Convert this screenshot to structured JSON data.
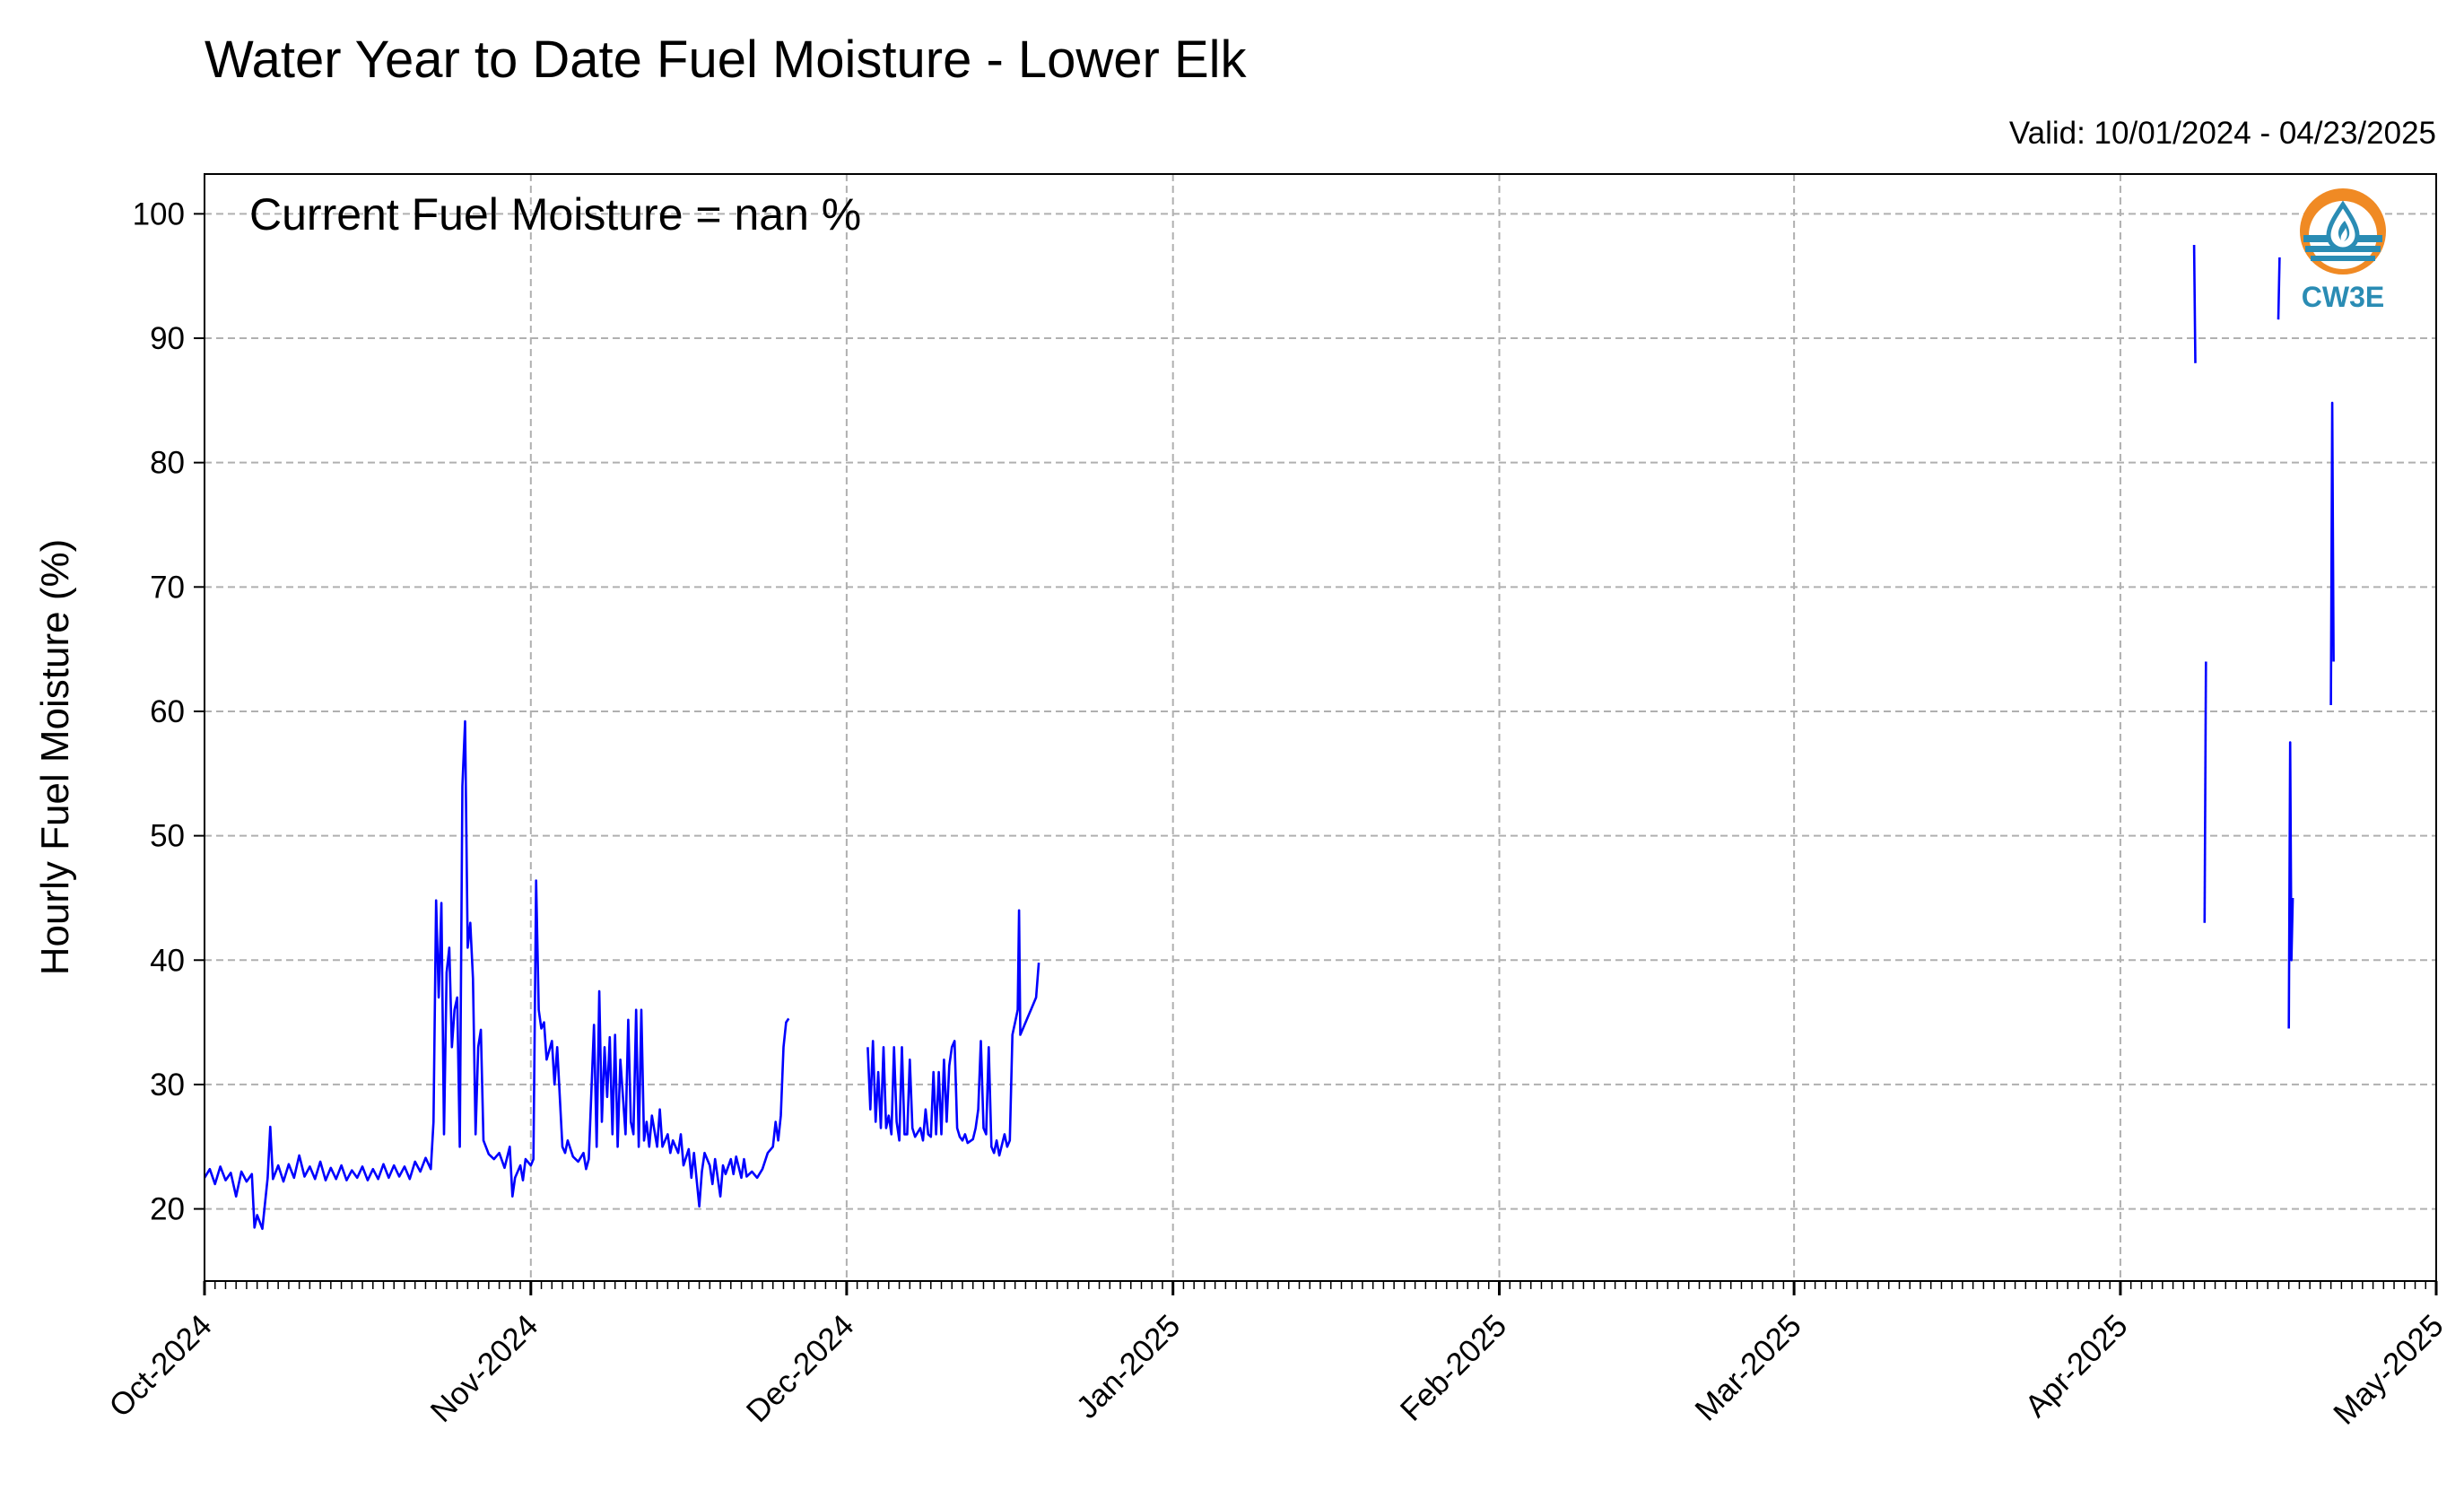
{
  "chart_data": {
    "type": "line",
    "title": "Water Year to Date Fuel Moisture - Lower Elk",
    "valid": "Valid: 10/01/2024 - 04/23/2025",
    "current": "Current Fuel Moisture = nan %",
    "xlabel": "",
    "ylabel": "Hourly Fuel Moisture (%)",
    "xlim": [
      "2024-10-01",
      "2025-05-01"
    ],
    "ylim": [
      14.2,
      103.2
    ],
    "yticks": [
      20,
      30,
      40,
      50,
      60,
      70,
      80,
      90,
      100
    ],
    "xticks": [
      {
        "date": "2024-10-01",
        "label": "Oct-2024"
      },
      {
        "date": "2024-11-01",
        "label": "Nov-2024"
      },
      {
        "date": "2024-12-01",
        "label": "Dec-2024"
      },
      {
        "date": "2025-01-01",
        "label": "Jan-2025"
      },
      {
        "date": "2025-02-01",
        "label": "Feb-2025"
      },
      {
        "date": "2025-03-01",
        "label": "Mar-2025"
      },
      {
        "date": "2025-04-01",
        "label": "Apr-2025"
      },
      {
        "date": "2025-05-01",
        "label": "May-2025"
      }
    ],
    "grid": true,
    "series": [
      {
        "color": "#0000ff",
        "segments": [
          [
            [
              "2024-10-01",
              22.5
            ],
            [
              "2024-10-01T12",
              23.2
            ],
            [
              "2024-10-02",
              22.0
            ],
            [
              "2024-10-02T12",
              23.4
            ],
            [
              "2024-10-03",
              22.3
            ],
            [
              "2024-10-03T12",
              22.9
            ],
            [
              "2024-10-04",
              21.0
            ],
            [
              "2024-10-04T12",
              23.0
            ],
            [
              "2024-10-05",
              22.2
            ],
            [
              "2024-10-05T12",
              22.8
            ],
            [
              "2024-10-05T18",
              18.5
            ],
            [
              "2024-10-06",
              19.5
            ],
            [
              "2024-10-06T12",
              18.4
            ],
            [
              "2024-10-07",
              22.5
            ],
            [
              "2024-10-07T06",
              26.6
            ],
            [
              "2024-10-07T12",
              22.4
            ],
            [
              "2024-10-08",
              23.5
            ],
            [
              "2024-10-08T12",
              22.2
            ],
            [
              "2024-10-09",
              23.6
            ],
            [
              "2024-10-09T12",
              22.5
            ],
            [
              "2024-10-10",
              24.3
            ],
            [
              "2024-10-10T12",
              22.6
            ],
            [
              "2024-10-11",
              23.4
            ],
            [
              "2024-10-11T12",
              22.4
            ],
            [
              "2024-10-12",
              23.8
            ],
            [
              "2024-10-12T12",
              22.3
            ],
            [
              "2024-10-13",
              23.3
            ],
            [
              "2024-10-13T12",
              22.4
            ],
            [
              "2024-10-14",
              23.5
            ],
            [
              "2024-10-14T12",
              22.3
            ],
            [
              "2024-10-15",
              23.1
            ],
            [
              "2024-10-15T12",
              22.5
            ],
            [
              "2024-10-16",
              23.4
            ],
            [
              "2024-10-16T12",
              22.3
            ],
            [
              "2024-10-17",
              23.2
            ],
            [
              "2024-10-17T12",
              22.4
            ],
            [
              "2024-10-18",
              23.6
            ],
            [
              "2024-10-18T12",
              22.5
            ],
            [
              "2024-10-19",
              23.5
            ],
            [
              "2024-10-19T12",
              22.6
            ],
            [
              "2024-10-20",
              23.4
            ],
            [
              "2024-10-20T12",
              22.4
            ],
            [
              "2024-10-21",
              23.8
            ],
            [
              "2024-10-21T12",
              23.0
            ],
            [
              "2024-10-22",
              24.1
            ],
            [
              "2024-10-22T12",
              23.2
            ],
            [
              "2024-10-22T18",
              27.0
            ],
            [
              "2024-10-23",
              44.8
            ],
            [
              "2024-10-23T06",
              37.0
            ],
            [
              "2024-10-23T12",
              44.6
            ],
            [
              "2024-10-23T18",
              26.0
            ],
            [
              "2024-10-24",
              39.0
            ],
            [
              "2024-10-24T06",
              41.0
            ],
            [
              "2024-10-24T12",
              33.0
            ],
            [
              "2024-10-24T18",
              36.0
            ],
            [
              "2024-10-25",
              37.0
            ],
            [
              "2024-10-25T06",
              25.0
            ],
            [
              "2024-10-25T12",
              54.0
            ],
            [
              "2024-10-25T18",
              59.2
            ],
            [
              "2024-10-26",
              41.0
            ],
            [
              "2024-10-26T06",
              43.0
            ],
            [
              "2024-10-26T12",
              38.5
            ],
            [
              "2024-10-26T18",
              26.0
            ],
            [
              "2024-10-27",
              33.0
            ],
            [
              "2024-10-27T06",
              34.4
            ],
            [
              "2024-10-27T12",
              25.5
            ],
            [
              "2024-10-28",
              24.4
            ],
            [
              "2024-10-28T12",
              24.0
            ],
            [
              "2024-10-29",
              24.5
            ],
            [
              "2024-10-29T12",
              23.3
            ],
            [
              "2024-10-30",
              25.0
            ],
            [
              "2024-10-30T06",
              21.0
            ],
            [
              "2024-10-30T12",
              22.5
            ],
            [
              "2024-10-31",
              23.5
            ],
            [
              "2024-10-31T06",
              22.3
            ],
            [
              "2024-10-31T12",
              24.0
            ],
            [
              "2024-11-01",
              23.5
            ],
            [
              "2024-11-01T06",
              24.0
            ],
            [
              "2024-11-01T12",
              46.4
            ],
            [
              "2024-11-01T18",
              36.0
            ],
            [
              "2024-11-02",
              34.5
            ],
            [
              "2024-11-02T06",
              35.0
            ],
            [
              "2024-11-02T12",
              32.0
            ],
            [
              "2024-11-03",
              33.5
            ],
            [
              "2024-11-03T06",
              30.0
            ],
            [
              "2024-11-03T12",
              33.0
            ],
            [
              "2024-11-04",
              25.0
            ],
            [
              "2024-11-04T06",
              24.5
            ],
            [
              "2024-11-04T12",
              25.5
            ],
            [
              "2024-11-05",
              24.2
            ],
            [
              "2024-11-05T12",
              23.8
            ],
            [
              "2024-11-06",
              24.5
            ],
            [
              "2024-11-06T06",
              23.2
            ],
            [
              "2024-11-06T12",
              24.0
            ],
            [
              "2024-11-07",
              34.8
            ],
            [
              "2024-11-07T06",
              25.0
            ],
            [
              "2024-11-07T12",
              37.5
            ],
            [
              "2024-11-07T18",
              27.0
            ],
            [
              "2024-11-08",
              33.0
            ],
            [
              "2024-11-08T06",
              29.0
            ],
            [
              "2024-11-08T12",
              33.8
            ],
            [
              "2024-11-08T18",
              26.0
            ],
            [
              "2024-11-09",
              34.0
            ],
            [
              "2024-11-09T06",
              25.0
            ],
            [
              "2024-11-09T12",
              32.0
            ],
            [
              "2024-11-10",
              26.0
            ],
            [
              "2024-11-10T06",
              35.2
            ],
            [
              "2024-11-10T12",
              27.0
            ],
            [
              "2024-11-10T18",
              26.0
            ],
            [
              "2024-11-11",
              36.0
            ],
            [
              "2024-11-11T06",
              25.0
            ],
            [
              "2024-11-11T12",
              36.0
            ],
            [
              "2024-11-11T18",
              25.5
            ],
            [
              "2024-11-12",
              27.0
            ],
            [
              "2024-11-12T06",
              25.0
            ],
            [
              "2024-11-12T12",
              27.5
            ],
            [
              "2024-11-13",
              25.0
            ],
            [
              "2024-11-13T06",
              28.0
            ],
            [
              "2024-11-13T12",
              25.0
            ],
            [
              "2024-11-14",
              26.0
            ],
            [
              "2024-11-14T06",
              24.5
            ],
            [
              "2024-11-14T12",
              25.5
            ],
            [
              "2024-11-15",
              24.5
            ],
            [
              "2024-11-15T06",
              26.0
            ],
            [
              "2024-11-15T12",
              23.5
            ],
            [
              "2024-11-16",
              24.8
            ],
            [
              "2024-11-16T06",
              22.5
            ],
            [
              "2024-11-16T12",
              24.5
            ],
            [
              "2024-11-17",
              20.2
            ],
            [
              "2024-11-17T06",
              23.0
            ],
            [
              "2024-11-17T12",
              24.5
            ],
            [
              "2024-11-18",
              23.5
            ],
            [
              "2024-11-18T06",
              22.0
            ],
            [
              "2024-11-18T12",
              24.0
            ],
            [
              "2024-11-19",
              21.0
            ],
            [
              "2024-11-19T06",
              23.5
            ],
            [
              "2024-11-19T12",
              22.8
            ],
            [
              "2024-11-20",
              24.0
            ],
            [
              "2024-11-20T06",
              22.8
            ],
            [
              "2024-11-20T12",
              24.2
            ],
            [
              "2024-11-21",
              22.5
            ],
            [
              "2024-11-21T06",
              24.0
            ],
            [
              "2024-11-21T12",
              22.6
            ],
            [
              "2024-11-22",
              23.0
            ],
            [
              "2024-11-22T12",
              22.5
            ],
            [
              "2024-11-23",
              23.2
            ],
            [
              "2024-11-23T12",
              24.5
            ],
            [
              "2024-11-24",
              25.0
            ],
            [
              "2024-11-24T06",
              27.0
            ],
            [
              "2024-11-24T12",
              25.5
            ],
            [
              "2024-11-24T18",
              27.5
            ],
            [
              "2024-11-25",
              33.0
            ],
            [
              "2024-11-25T06",
              35.0
            ],
            [
              "2024-11-25T12",
              35.3
            ]
          ],
          [
            [
              "2024-12-03",
              33.0
            ],
            [
              "2024-12-03T06",
              28.0
            ],
            [
              "2024-12-03T12",
              33.5
            ],
            [
              "2024-12-03T18",
              27.0
            ],
            [
              "2024-12-04",
              31.0
            ],
            [
              "2024-12-04T06",
              26.5
            ],
            [
              "2024-12-04T12",
              33.0
            ],
            [
              "2024-12-04T18",
              26.5
            ],
            [
              "2024-12-05",
              27.5
            ],
            [
              "2024-12-05T06",
              26.0
            ],
            [
              "2024-12-05T12",
              33.0
            ],
            [
              "2024-12-05T18",
              27.0
            ],
            [
              "2024-12-06",
              25.5
            ],
            [
              "2024-12-06T06",
              33.0
            ],
            [
              "2024-12-06T12",
              26.0
            ],
            [
              "2024-12-06T18",
              26.0
            ],
            [
              "2024-12-07",
              32.0
            ],
            [
              "2024-12-07T06",
              26.5
            ],
            [
              "2024-12-07T12",
              25.8
            ],
            [
              "2024-12-08",
              26.5
            ],
            [
              "2024-12-08T06",
              25.5
            ],
            [
              "2024-12-08T12",
              28.0
            ],
            [
              "2024-12-08T18",
              26.0
            ],
            [
              "2024-12-09",
              25.8
            ],
            [
              "2024-12-09T06",
              31.0
            ],
            [
              "2024-12-09T12",
              26.0
            ],
            [
              "2024-12-09T18",
              31.0
            ],
            [
              "2024-12-10",
              26.0
            ],
            [
              "2024-12-10T06",
              32.0
            ],
            [
              "2024-12-10T12",
              27.0
            ],
            [
              "2024-12-10T18",
              31.5
            ],
            [
              "2024-12-11",
              33.0
            ],
            [
              "2024-12-11T06",
              33.5
            ],
            [
              "2024-12-11T12",
              26.5
            ],
            [
              "2024-12-11T18",
              25.8
            ],
            [
              "2024-12-12",
              25.5
            ],
            [
              "2024-12-12T06",
              26.0
            ],
            [
              "2024-12-12T12",
              25.3
            ],
            [
              "2024-12-13",
              25.6
            ],
            [
              "2024-12-13T06",
              26.5
            ],
            [
              "2024-12-13T12",
              28.0
            ],
            [
              "2024-12-13T18",
              33.5
            ],
            [
              "2024-12-14",
              26.5
            ],
            [
              "2024-12-14T06",
              26.0
            ],
            [
              "2024-12-14T12",
              33.0
            ],
            [
              "2024-12-14T18",
              25.0
            ],
            [
              "2024-12-15",
              24.5
            ],
            [
              "2024-12-15T06",
              25.5
            ],
            [
              "2024-12-15T12",
              24.3
            ],
            [
              "2024-12-16",
              26.0
            ],
            [
              "2024-12-16T06",
              25.0
            ],
            [
              "2024-12-16T12",
              25.5
            ],
            [
              "2024-12-16T18",
              34.0
            ],
            [
              "2024-12-17",
              35.0
            ],
            [
              "2024-12-17T06",
              36.0
            ],
            [
              "2024-12-17T09",
              44.0
            ],
            [
              "2024-12-17T12",
              34.0
            ],
            [
              "2024-12-17T18",
              34.5
            ],
            [
              "2024-12-18",
              35.0
            ],
            [
              "2024-12-18T06",
              35.5
            ],
            [
              "2024-12-18T12",
              36.0
            ],
            [
              "2024-12-19",
              37.0
            ],
            [
              "2024-12-19T06",
              39.8
            ]
          ],
          [
            [
              "2025-04-08",
              97.5
            ],
            [
              "2025-04-08T03",
              88.0
            ]
          ],
          [
            [
              "2025-04-09",
              43.0
            ],
            [
              "2025-04-09T03",
              64.0
            ]
          ],
          [
            [
              "2025-04-16",
              91.5
            ],
            [
              "2025-04-16T03",
              96.5
            ]
          ],
          [
            [
              "2025-04-17",
              34.5
            ],
            [
              "2025-04-17T03",
              57.5
            ],
            [
              "2025-04-17T06",
              40.0
            ],
            [
              "2025-04-17T09",
              45.0
            ]
          ],
          [
            [
              "2025-04-21",
              60.5
            ],
            [
              "2025-04-21T03",
              84.8
            ],
            [
              "2025-04-21T06",
              64.0
            ]
          ]
        ]
      }
    ]
  },
  "logo": {
    "text": "CW3E",
    "colors": {
      "sun": "#f08a24",
      "sea": "#2a8cb4",
      "text": "#2a8cb4"
    }
  },
  "colors": {
    "line": "#0000ff",
    "grid": "#b0b0b0"
  }
}
